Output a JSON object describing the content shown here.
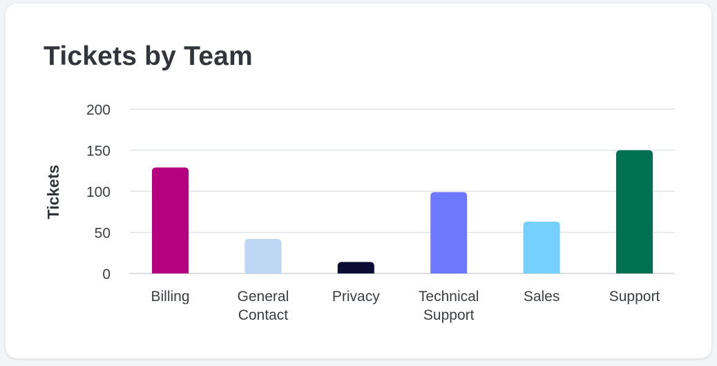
{
  "card": {
    "title": "Tickets by Team"
  },
  "chart_data": {
    "type": "bar",
    "title": "Tickets by Team",
    "xlabel": "",
    "ylabel": "Tickets",
    "ylim": [
      0,
      200
    ],
    "yticks": [
      0,
      50,
      100,
      150,
      200
    ],
    "grid": true,
    "categories": [
      [
        "Billing"
      ],
      [
        "General",
        "Contact"
      ],
      [
        "Privacy"
      ],
      [
        "Technical",
        "Support"
      ],
      [
        "Sales"
      ],
      [
        "Support"
      ]
    ],
    "values": [
      129,
      42,
      14,
      99,
      63,
      150
    ],
    "colors": [
      "#b5007f",
      "#bdd6f2",
      "#0b0c33",
      "#6e78ff",
      "#76d0ff",
      "#006f52"
    ]
  }
}
